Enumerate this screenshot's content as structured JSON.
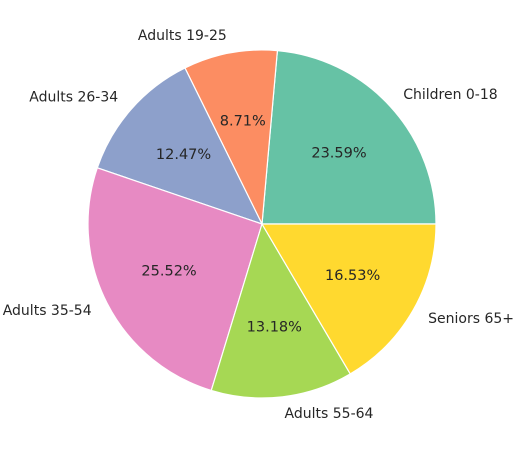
{
  "chart_data": {
    "type": "pie",
    "categories": [
      "Children 0-18",
      "Adults 19-25",
      "Adults 26-34",
      "Adults 35-54",
      "Adults 55-64",
      "Seniors 65+"
    ],
    "values": [
      23.59,
      8.71,
      12.47,
      25.52,
      13.18,
      16.53
    ],
    "value_labels": [
      "23.59%",
      "8.71%",
      "12.47%",
      "25.52%",
      "13.18%",
      "16.53%"
    ],
    "colors": [
      "#66c2a5",
      "#fc8d62",
      "#8da0cb",
      "#e78ac3",
      "#a6d854",
      "#ffd92f"
    ],
    "start_angle_deg": 0,
    "direction": "counterclockwise",
    "legend": "none"
  }
}
